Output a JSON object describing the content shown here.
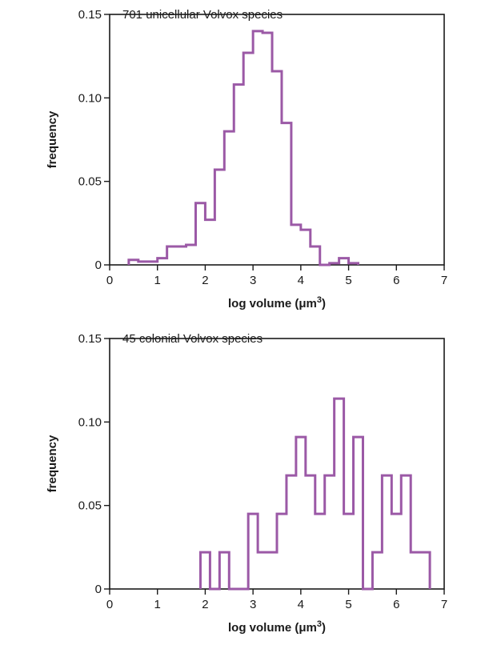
{
  "chart_data": [
    {
      "type": "histogram",
      "title": "701 unicellular Volvox species",
      "xlabel": "log volume (",
      "xlabel_unit": "μm",
      "xlabel_sup": "3",
      "xlabel_end": ")",
      "ylabel": "frequency",
      "xlim": [
        0,
        7
      ],
      "ylim": [
        0,
        0.15
      ],
      "xticks": [
        "0",
        "1",
        "2",
        "3",
        "4",
        "5",
        "6",
        "7"
      ],
      "yticks": [
        "0",
        "0.05",
        "0.10",
        "0.15"
      ],
      "bin_width": 0.2,
      "bins_start": [
        0.4,
        0.6,
        0.8,
        1.0,
        1.2,
        1.4,
        1.6,
        1.8,
        2.0,
        2.2,
        2.4,
        2.6,
        2.8,
        3.0,
        3.2,
        3.4,
        3.6,
        3.8,
        4.0,
        4.2,
        4.4,
        4.6,
        4.8,
        5.0
      ],
      "values": [
        0.003,
        0.002,
        0.002,
        0.004,
        0.011,
        0.011,
        0.012,
        0.037,
        0.027,
        0.057,
        0.08,
        0.108,
        0.127,
        0.14,
        0.139,
        0.116,
        0.085,
        0.024,
        0.021,
        0.011,
        0.0,
        0.001,
        0.004,
        0.001
      ],
      "grid": false
    },
    {
      "type": "histogram",
      "title": "45 colonial Volvox species",
      "xlabel": "log volume (",
      "xlabel_unit": "μm",
      "xlabel_sup": "3",
      "xlabel_end": ")",
      "ylabel": "frequency",
      "xlim": [
        0,
        7
      ],
      "ylim": [
        0,
        0.15
      ],
      "xticks": [
        "0",
        "1",
        "2",
        "3",
        "4",
        "5",
        "6",
        "7"
      ],
      "yticks": [
        "0",
        "0.05",
        "0.10",
        "0.15"
      ],
      "bin_width": 0.2,
      "bins_start": [
        1.9,
        2.1,
        2.3,
        2.5,
        2.7,
        2.9,
        3.1,
        3.3,
        3.5,
        3.7,
        3.9,
        4.1,
        4.3,
        4.5,
        4.7,
        4.9,
        5.1,
        5.3,
        5.5,
        5.7,
        5.9,
        6.1,
        6.3,
        6.5
      ],
      "values": [
        0.022,
        0.0,
        0.022,
        0.0,
        0.0,
        0.045,
        0.022,
        0.022,
        0.045,
        0.068,
        0.091,
        0.068,
        0.045,
        0.068,
        0.114,
        0.045,
        0.091,
        0.0,
        0.022,
        0.068,
        0.045,
        0.068,
        0.022,
        0.022
      ],
      "grid": false
    }
  ]
}
